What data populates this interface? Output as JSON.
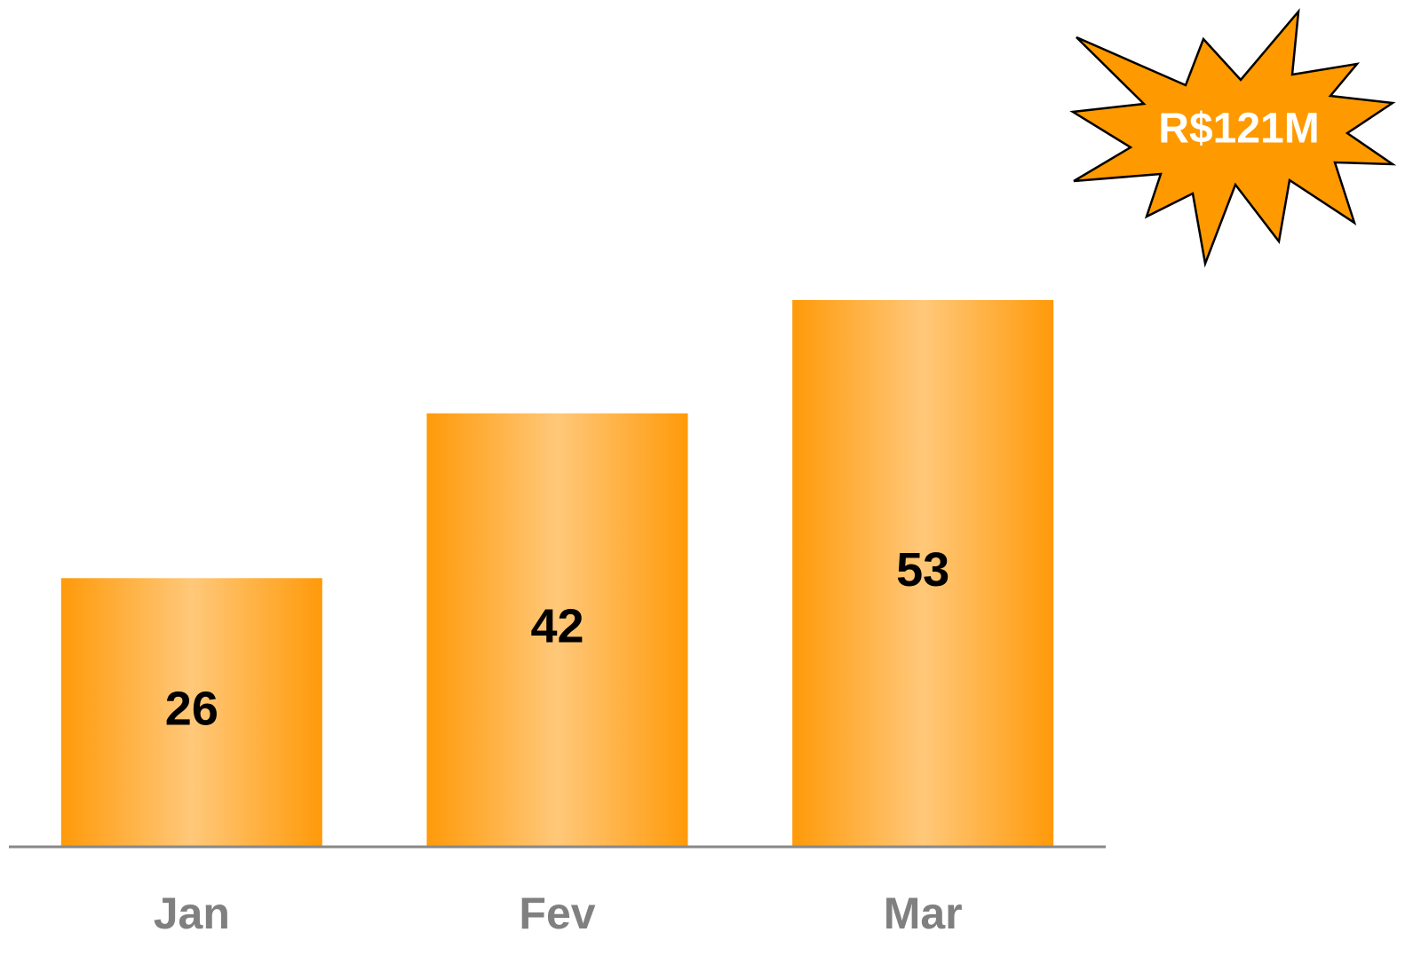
{
  "chart_data": {
    "type": "bar",
    "categories": [
      "Jan",
      "Fev",
      "Mar"
    ],
    "values": [
      26,
      42,
      53
    ],
    "color": "#ff9900",
    "annotation": "R$121M"
  }
}
